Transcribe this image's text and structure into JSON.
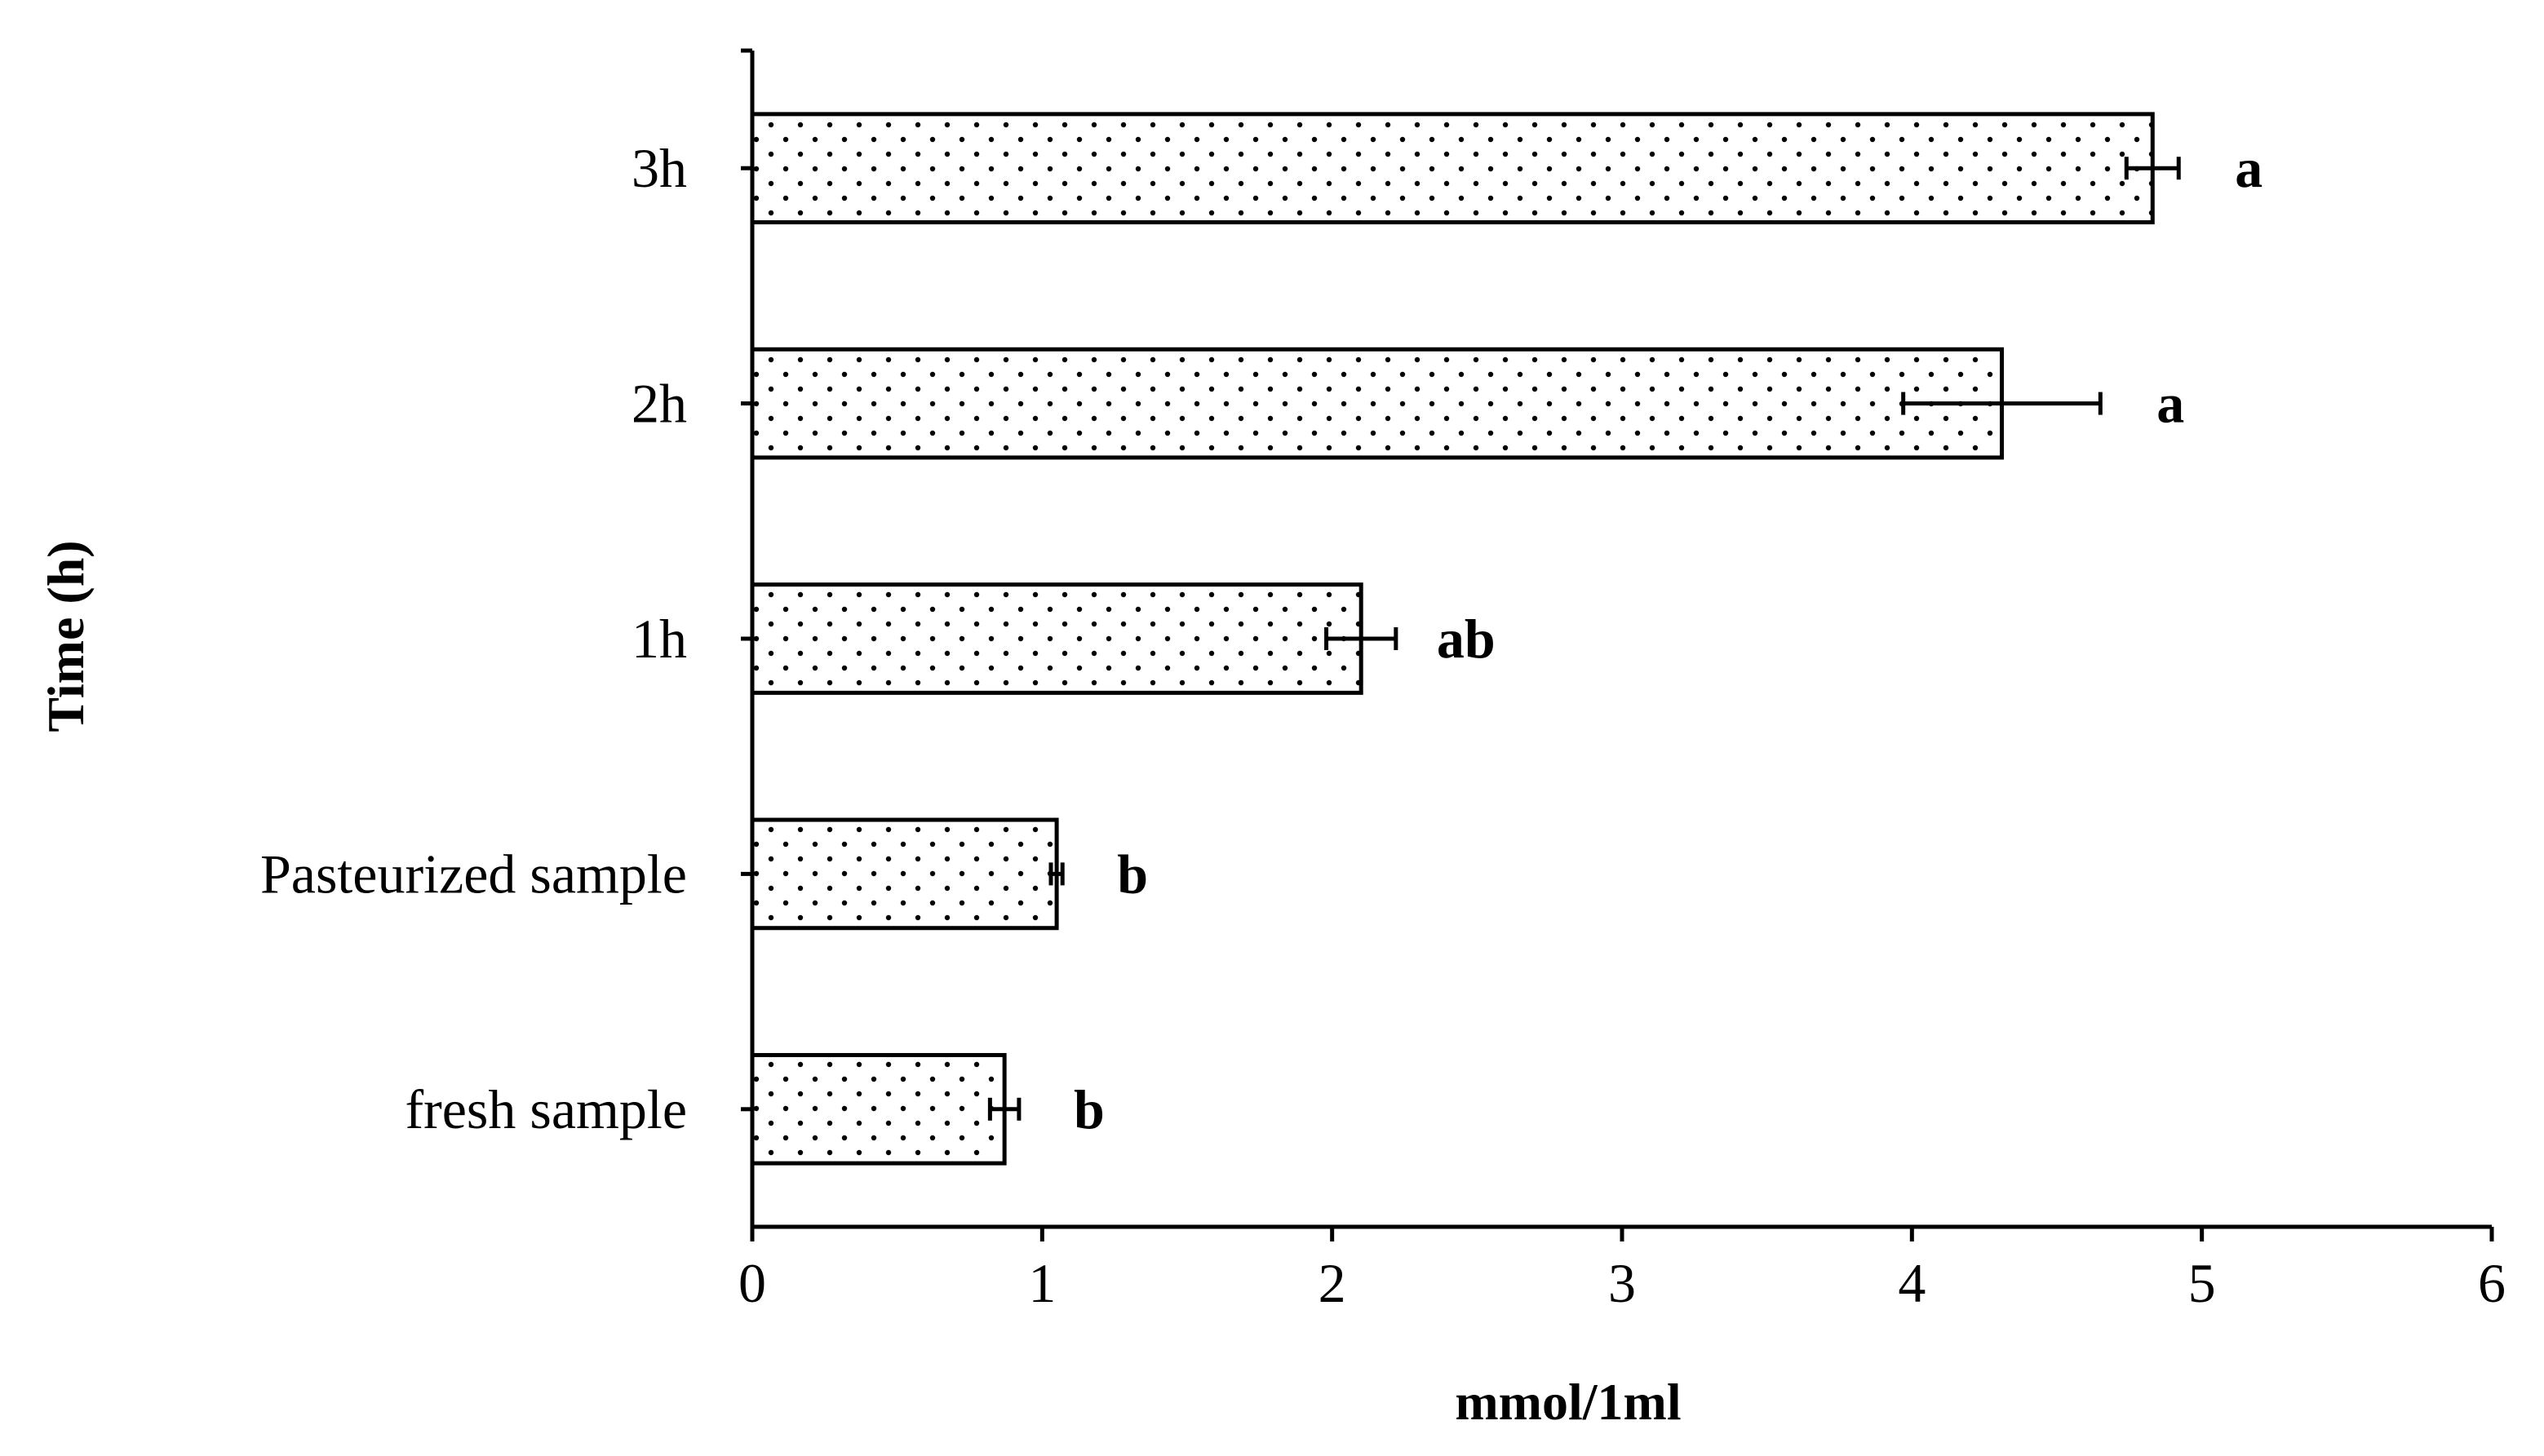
{
  "chart_data": {
    "type": "bar",
    "orientation": "horizontal",
    "categories": [
      "fresh sample",
      "Pasteurized sample",
      "1h",
      "2h",
      "3h"
    ],
    "values": [
      0.87,
      1.05,
      2.1,
      4.31,
      4.83
    ],
    "errors": [
      0.05,
      0.02,
      0.12,
      0.34,
      0.09
    ],
    "significance": [
      "b",
      "b",
      "ab",
      "a",
      "a"
    ],
    "xlabel": "mmol/1ml",
    "ylabel": "Time (h)",
    "xlim": [
      0,
      6
    ],
    "xticks": [
      "0",
      "1",
      "2",
      "3",
      "4",
      "5",
      "6"
    ],
    "grid": false,
    "bar_fill": "dotted pattern",
    "bar_color": "#ffffff",
    "edge_color": "#000000"
  }
}
